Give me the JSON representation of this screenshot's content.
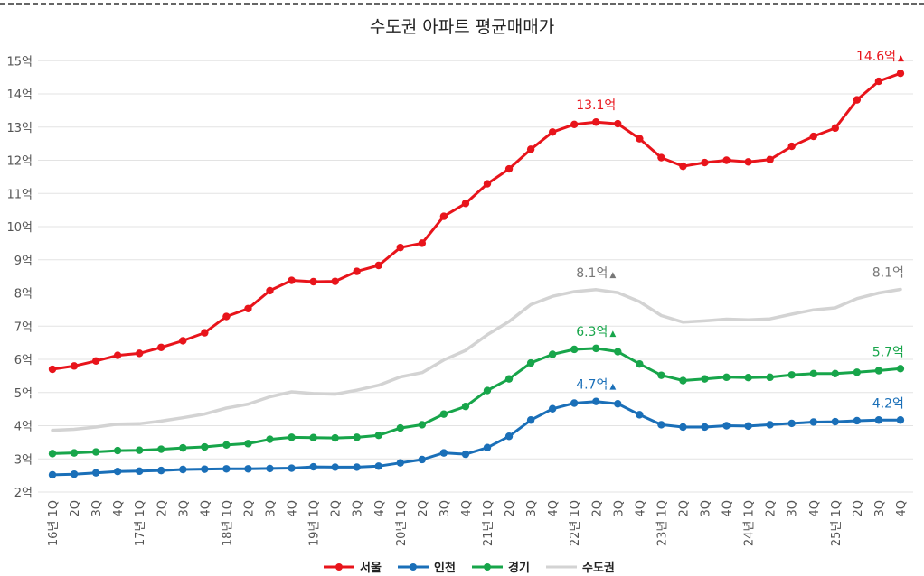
{
  "chart_data": {
    "type": "line",
    "title": "수도권 아파트 평균매매가",
    "xlabel": "",
    "ylabel": "",
    "ylim": [
      2,
      15
    ],
    "y_ticks": [
      2,
      3,
      4,
      5,
      6,
      7,
      8,
      9,
      10,
      11,
      12,
      13,
      14,
      15
    ],
    "y_tick_labels": [
      "2억",
      "3억",
      "4억",
      "5억",
      "6억",
      "7억",
      "8억",
      "9억",
      "10억",
      "11억",
      "12억",
      "13억",
      "14억",
      "15억"
    ],
    "grid": true,
    "legend_position": "bottom",
    "categories": [
      "16년 1Q",
      "2Q",
      "3Q",
      "4Q",
      "17년 1Q",
      "2Q",
      "3Q",
      "4Q",
      "18년 1Q",
      "2Q",
      "3Q",
      "4Q",
      "19년 1Q",
      "2Q",
      "3Q",
      "4Q",
      "20년 1Q",
      "2Q",
      "3Q",
      "4Q",
      "21년 1Q",
      "2Q",
      "3Q",
      "4Q",
      "22년 1Q",
      "2Q",
      "3Q",
      "4Q",
      "23년 1Q",
      "2Q",
      "3Q",
      "4Q",
      "24년 1Q",
      "2Q",
      "3Q",
      "4Q",
      "25년 1Q",
      "2Q",
      "3Q",
      "4Q"
    ],
    "series": [
      {
        "name": "서울",
        "color": "#e8141b",
        "markers": true,
        "values": [
          5.7,
          5.8,
          5.95,
          6.12,
          6.18,
          6.36,
          6.56,
          6.8,
          7.29,
          7.53,
          8.07,
          8.38,
          8.34,
          8.35,
          8.65,
          8.83,
          9.37,
          9.5,
          10.31,
          10.7,
          11.29,
          11.74,
          12.33,
          12.85,
          13.08,
          13.15,
          13.1,
          12.65,
          12.08,
          11.82,
          11.93,
          12.0,
          11.95,
          12.02,
          12.42,
          12.72,
          12.97,
          13.82,
          14.38,
          14.62
        ]
      },
      {
        "name": "인천",
        "color": "#1a6fb8",
        "markers": true,
        "values": [
          2.52,
          2.54,
          2.58,
          2.62,
          2.63,
          2.65,
          2.68,
          2.69,
          2.7,
          2.7,
          2.71,
          2.72,
          2.76,
          2.75,
          2.75,
          2.78,
          2.88,
          2.98,
          3.18,
          3.14,
          3.34,
          3.68,
          4.17,
          4.51,
          4.68,
          4.73,
          4.66,
          4.33,
          4.03,
          3.96,
          3.96,
          4.0,
          3.99,
          4.03,
          4.07,
          4.11,
          4.12,
          4.15,
          4.17,
          4.17
        ]
      },
      {
        "name": "경기",
        "color": "#17a54a",
        "markers": true,
        "values": [
          3.16,
          3.18,
          3.21,
          3.25,
          3.26,
          3.29,
          3.33,
          3.36,
          3.42,
          3.46,
          3.59,
          3.65,
          3.64,
          3.63,
          3.65,
          3.71,
          3.93,
          4.03,
          4.35,
          4.58,
          5.06,
          5.41,
          5.89,
          6.15,
          6.3,
          6.33,
          6.23,
          5.86,
          5.52,
          5.36,
          5.41,
          5.46,
          5.45,
          5.46,
          5.53,
          5.57,
          5.57,
          5.61,
          5.66,
          5.72
        ]
      },
      {
        "name": "수도권",
        "color": "#d3d3d3",
        "markers": false,
        "values": [
          3.86,
          3.89,
          3.96,
          4.05,
          4.06,
          4.14,
          4.24,
          4.35,
          4.53,
          4.65,
          4.87,
          5.02,
          4.97,
          4.95,
          5.07,
          5.22,
          5.47,
          5.6,
          5.98,
          6.27,
          6.74,
          7.14,
          7.65,
          7.9,
          8.04,
          8.1,
          8.01,
          7.74,
          7.32,
          7.12,
          7.16,
          7.21,
          7.19,
          7.22,
          7.36,
          7.49,
          7.55,
          7.83,
          8.0,
          8.11
        ]
      }
    ],
    "annotations": [
      {
        "series": "서울",
        "index": 39,
        "text": "14.6억",
        "marker": "▲",
        "color": "#e8141b"
      },
      {
        "series": "서울",
        "index": 25,
        "text": "13.1억",
        "marker": "",
        "color": "#e8141b"
      },
      {
        "series": "수도권",
        "index": 25,
        "text": "8.1억",
        "marker": "▲",
        "color": "#777777"
      },
      {
        "series": "수도권",
        "index": 39,
        "text": "8.1억",
        "marker": "",
        "color": "#777777"
      },
      {
        "series": "경기",
        "index": 25,
        "text": "6.3억",
        "marker": "▲",
        "color": "#17a54a"
      },
      {
        "series": "경기",
        "index": 39,
        "text": "5.7억",
        "marker": "",
        "color": "#17a54a"
      },
      {
        "series": "인천",
        "index": 25,
        "text": "4.7억",
        "marker": "▲",
        "color": "#1a6fb8"
      },
      {
        "series": "인천",
        "index": 39,
        "text": "4.2억",
        "marker": "",
        "color": "#1a6fb8"
      }
    ]
  }
}
